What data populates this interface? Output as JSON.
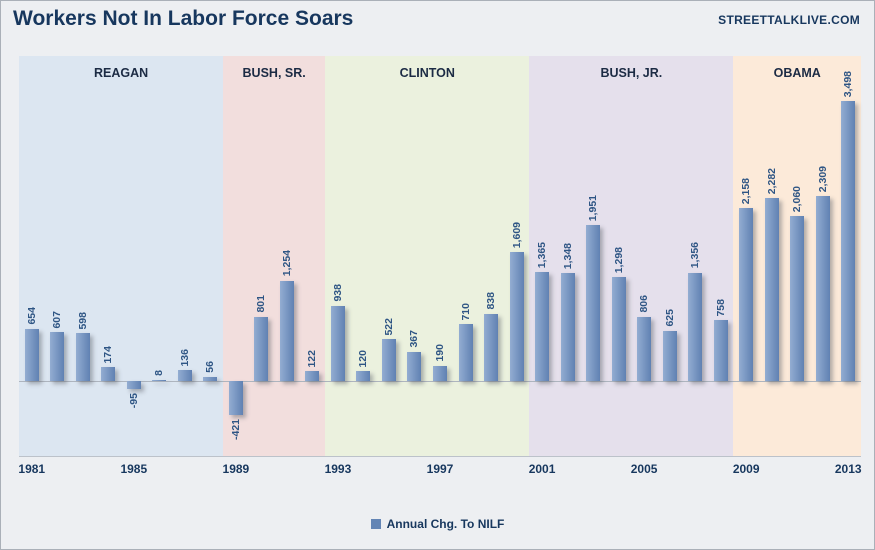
{
  "header": {
    "title": "Workers Not In Labor Force Soars",
    "watermark": "STREETTALKLIVE.COM"
  },
  "legend": {
    "label": "Annual Chg. To NILF"
  },
  "chart_data": {
    "type": "bar",
    "title": "Workers Not In Labor Force Soars",
    "x": [
      1981,
      1982,
      1983,
      1984,
      1985,
      1986,
      1987,
      1988,
      1989,
      1990,
      1991,
      1992,
      1993,
      1994,
      1995,
      1996,
      1997,
      1998,
      1999,
      2000,
      2001,
      2002,
      2003,
      2004,
      2005,
      2006,
      2007,
      2008,
      2009,
      2010,
      2011,
      2012,
      2013
    ],
    "values": [
      654,
      607,
      598,
      174,
      -95,
      8,
      136,
      56,
      -421,
      801,
      1254,
      122,
      938,
      120,
      522,
      367,
      190,
      710,
      838,
      1609,
      1365,
      1348,
      1951,
      1298,
      806,
      625,
      1356,
      758,
      2158,
      2282,
      2060,
      2309,
      3498
    ],
    "labels": [
      "654",
      "607",
      "598",
      "174",
      "-95",
      "8",
      "136",
      "56",
      "-421",
      "801",
      "1,254",
      "122",
      "938",
      "120",
      "522",
      "367",
      "190",
      "710",
      "838",
      "1,609",
      "1,365",
      "1,348",
      "1,951",
      "1,298",
      "806",
      "625",
      "1,356",
      "758",
      "2,158",
      "2,282",
      "2,060",
      "2,309",
      "3,498"
    ],
    "x_ticks": [
      1981,
      1985,
      1989,
      1993,
      1997,
      2001,
      2005,
      2009,
      2013
    ],
    "eras": [
      {
        "name": "REAGAN",
        "start_year": 1981,
        "end_year": 1988,
        "start_index": 0,
        "end_index": 7,
        "color": "#dce6f1"
      },
      {
        "name": "BUSH, SR.",
        "start_year": 1989,
        "end_year": 1992,
        "start_index": 8,
        "end_index": 11,
        "color": "#f2dedd"
      },
      {
        "name": "CLINTON",
        "start_year": 1993,
        "end_year": 2000,
        "start_index": 12,
        "end_index": 19,
        "color": "#ebf1de"
      },
      {
        "name": "BUSH, JR.",
        "start_year": 2001,
        "end_year": 2008,
        "start_index": 20,
        "end_index": 27,
        "color": "#e5e0ec"
      },
      {
        "name": "OBAMA",
        "start_year": 2009,
        "end_year": 2013,
        "start_index": 28,
        "end_index": 32,
        "color": "#fcead9"
      }
    ],
    "bar_color": "#6385b5",
    "label_color": "#2e5584",
    "ylim": [
      -500,
      3600
    ],
    "grid": false,
    "legend": "Annual Chg. To NILF",
    "legend_position": "bottom"
  }
}
